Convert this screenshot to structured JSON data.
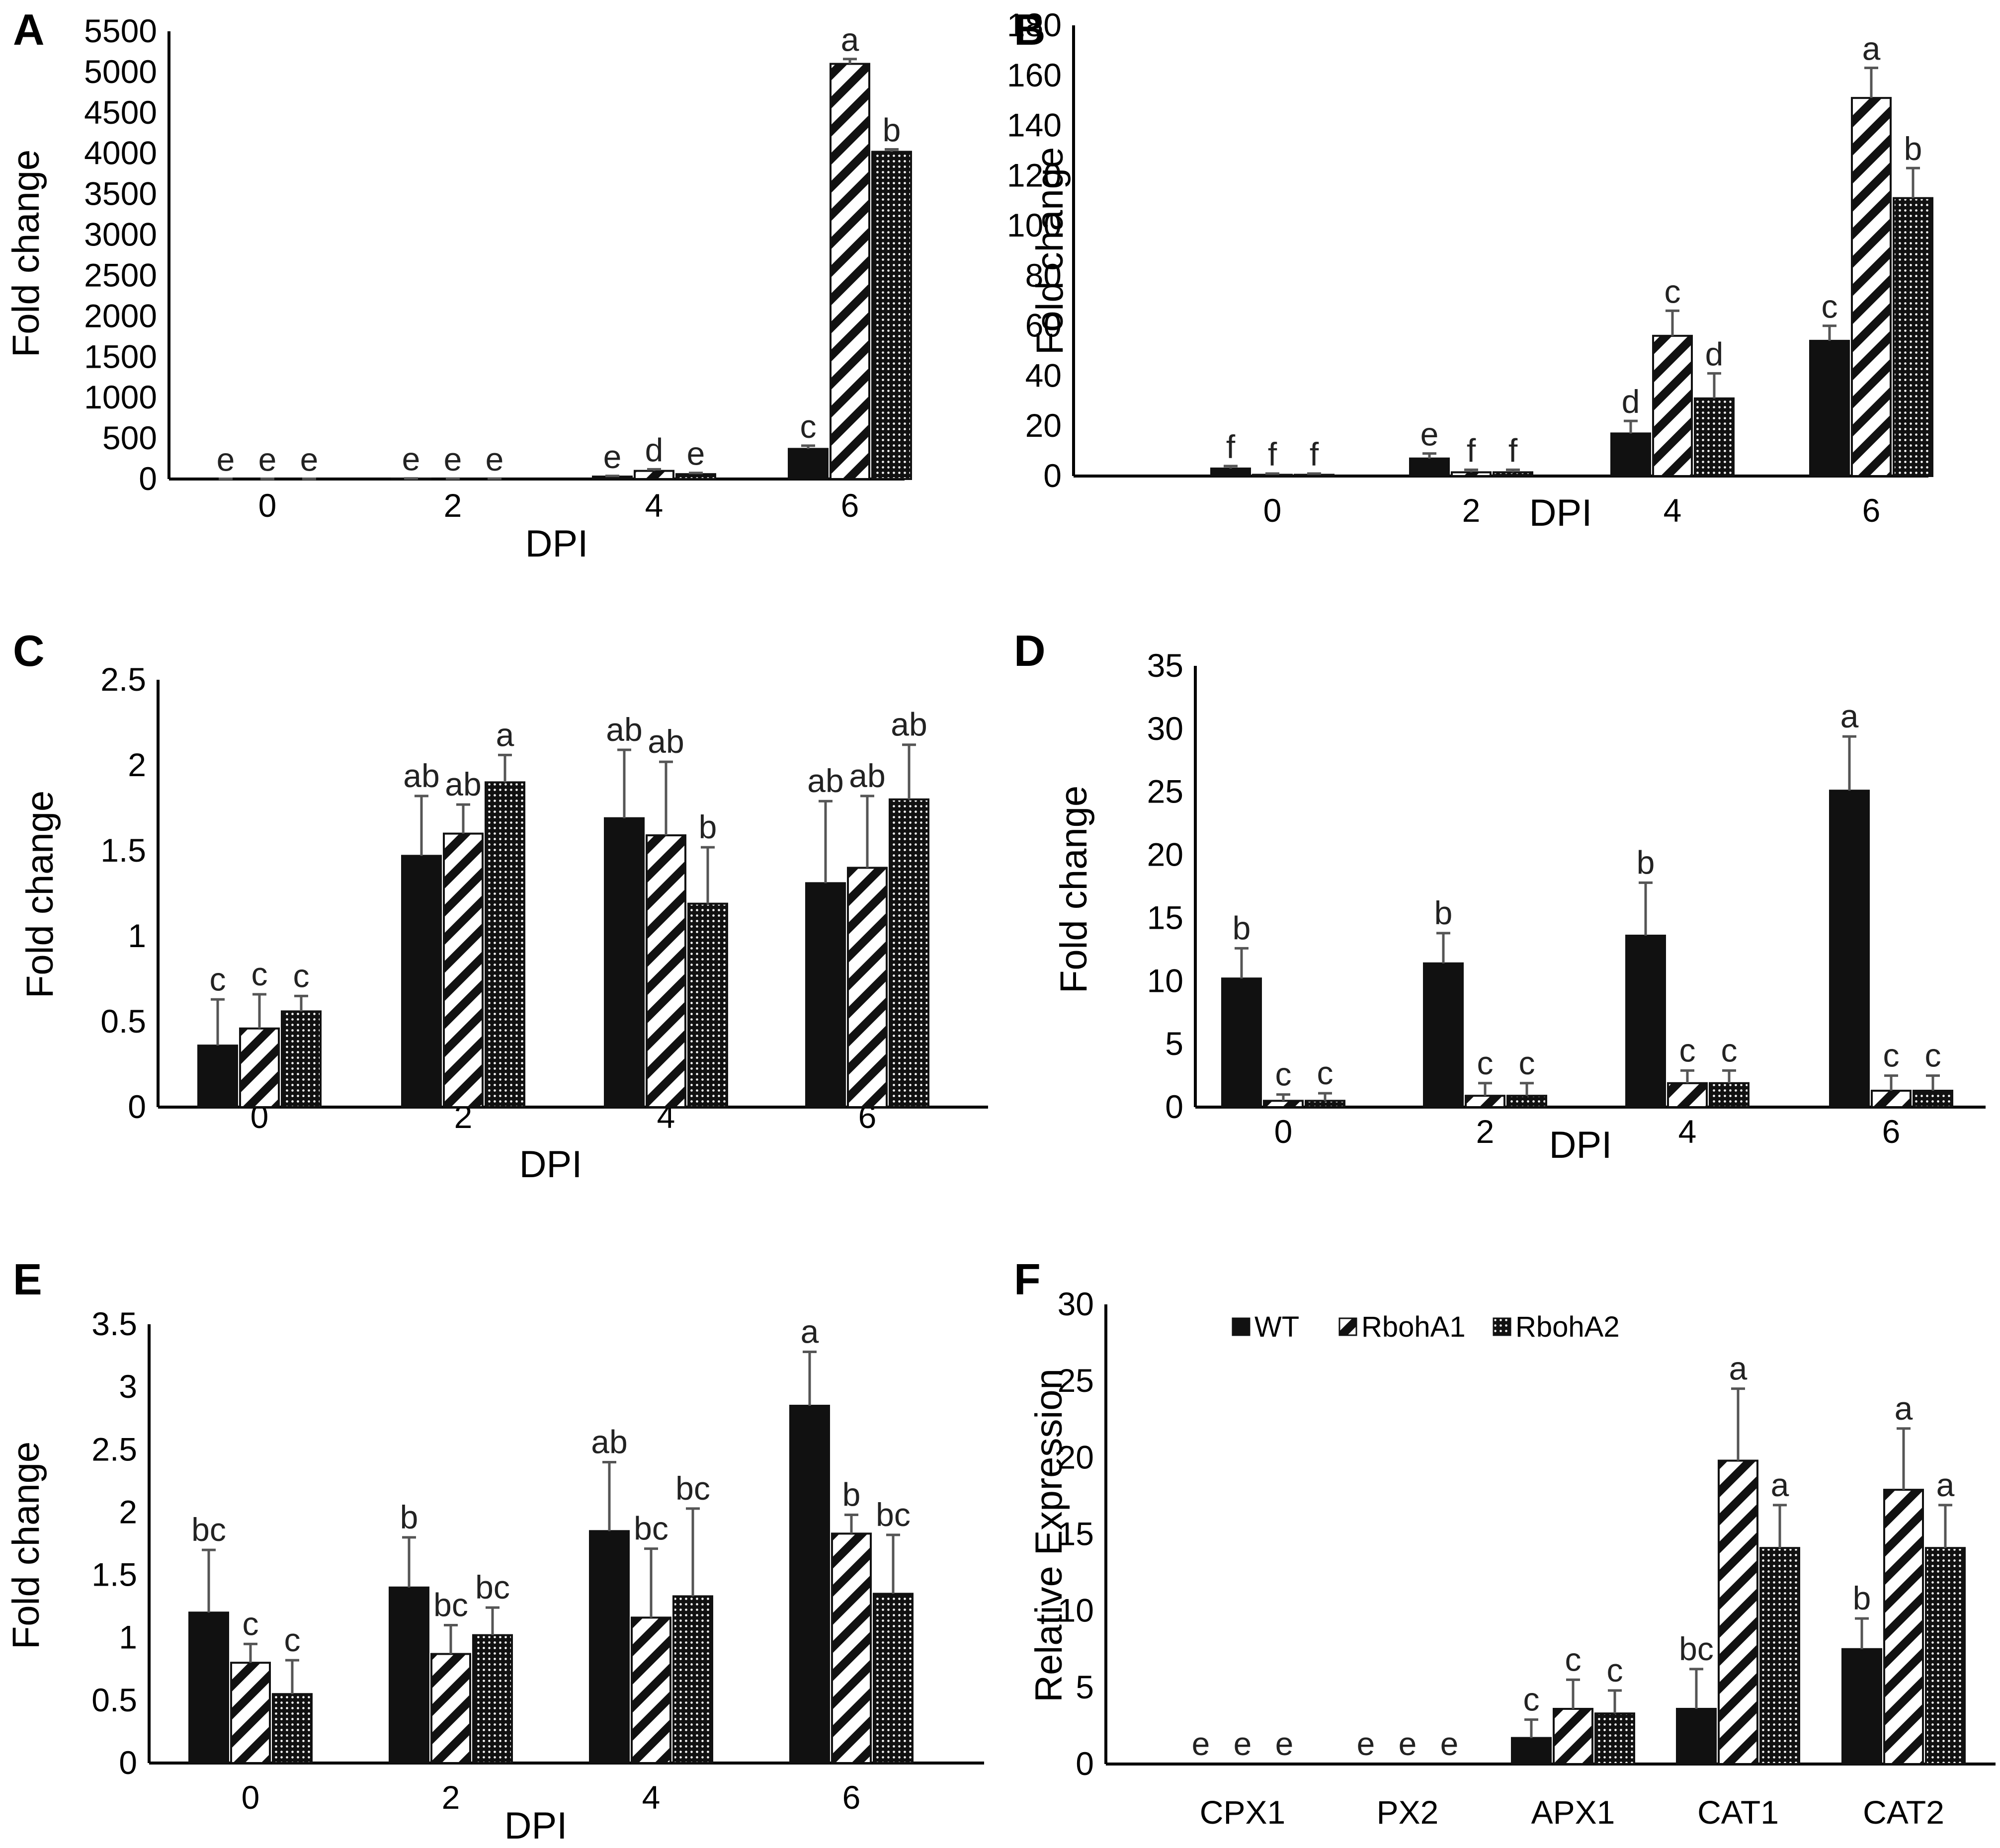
{
  "colors": {
    "bar": "#111111",
    "error": "#555555",
    "axis": "#000000"
  },
  "legend": {
    "items": [
      "WT",
      "RbohA1",
      "RbohA2"
    ],
    "patterns": [
      "solid",
      "diagonal",
      "dots"
    ]
  },
  "chart_data": [
    {
      "panel": "A",
      "type": "bar",
      "xlabel": "DPI",
      "ylabel": "Fold change",
      "ylim": [
        0,
        5500
      ],
      "yticks": [
        0,
        500,
        1000,
        1500,
        2000,
        2500,
        3000,
        3500,
        4000,
        4500,
        5000,
        5500
      ],
      "categories": [
        "0",
        "2",
        "4",
        "6"
      ],
      "series": [
        {
          "name": "WT",
          "values": [
            1,
            5,
            30,
            370
          ],
          "errors": [
            2,
            3,
            8,
            40
          ],
          "labels": [
            "e",
            "e",
            "e",
            "c"
          ]
        },
        {
          "name": "RbohA1",
          "values": [
            1,
            3,
            100,
            5100
          ],
          "errors": [
            1,
            2,
            20,
            60
          ],
          "labels": [
            "e",
            "e",
            "d",
            "a"
          ]
        },
        {
          "name": "RbohA2",
          "values": [
            1,
            3,
            60,
            4020
          ],
          "errors": [
            1,
            2,
            15,
            30
          ],
          "labels": [
            "e",
            "e",
            "e",
            "b"
          ]
        }
      ]
    },
    {
      "panel": "B",
      "type": "bar",
      "xlabel": "DPI",
      "ylabel": "Fold change",
      "ylim": [
        0,
        180
      ],
      "yticks": [
        0,
        20,
        40,
        60,
        80,
        100,
        120,
        140,
        160,
        180
      ],
      "categories": [
        "0",
        "2",
        "4",
        "6"
      ],
      "series": [
        {
          "name": "WT",
          "values": [
            3,
            7,
            17,
            54
          ],
          "errors": [
            1,
            2,
            5,
            6
          ],
          "labels": [
            "f",
            "e",
            "d",
            "c"
          ]
        },
        {
          "name": "RbohA1",
          "values": [
            0.5,
            1.5,
            56,
            151
          ],
          "errors": [
            0.5,
            1,
            10,
            12
          ],
          "labels": [
            "f",
            "f",
            "c",
            "a"
          ]
        },
        {
          "name": "RbohA2",
          "values": [
            0.5,
            1.5,
            31,
            111
          ],
          "errors": [
            0.5,
            1,
            10,
            12
          ],
          "labels": [
            "f",
            "f",
            "d",
            "b"
          ]
        }
      ]
    },
    {
      "panel": "C",
      "type": "bar",
      "xlabel": "DPI",
      "ylabel": "Fold change",
      "ylim": [
        0,
        2.5
      ],
      "yticks": [
        0,
        0.5,
        1,
        1.5,
        2,
        2.5
      ],
      "categories": [
        "0",
        "2",
        "4",
        "6"
      ],
      "series": [
        {
          "name": "WT",
          "values": [
            0.36,
            1.47,
            1.69,
            1.31
          ],
          "errors": [
            0.27,
            0.35,
            0.4,
            0.48
          ],
          "labels": [
            "c",
            "ab",
            "ab",
            "ab"
          ]
        },
        {
          "name": "RbohA1",
          "values": [
            0.46,
            1.6,
            1.59,
            1.4
          ],
          "errors": [
            0.2,
            0.17,
            0.43,
            0.42
          ],
          "labels": [
            "c",
            "ab",
            "ab",
            "ab"
          ]
        },
        {
          "name": "RbohA2",
          "values": [
            0.56,
            1.9,
            1.19,
            1.8
          ],
          "errors": [
            0.09,
            0.16,
            0.33,
            0.32
          ],
          "labels": [
            "c",
            "a",
            "b",
            "ab"
          ]
        }
      ]
    },
    {
      "panel": "D",
      "type": "bar",
      "xlabel": "DPI",
      "ylabel": "Fold change",
      "ylim": [
        0,
        35
      ],
      "yticks": [
        0,
        5,
        10,
        15,
        20,
        25,
        30,
        35
      ],
      "categories": [
        "0",
        "2",
        "4",
        "6"
      ],
      "series": [
        {
          "name": "WT",
          "values": [
            10.2,
            11.4,
            13.6,
            25.1
          ],
          "errors": [
            2.4,
            2.4,
            4.2,
            4.3
          ],
          "labels": [
            "b",
            "b",
            "b",
            "a"
          ]
        },
        {
          "name": "RbohA1",
          "values": [
            0.5,
            0.9,
            1.9,
            1.3
          ],
          "errors": [
            0.5,
            1,
            1,
            1.2
          ],
          "labels": [
            "c",
            "c",
            "c",
            "c"
          ]
        },
        {
          "name": "RbohA2",
          "values": [
            0.5,
            0.9,
            1.9,
            1.3
          ],
          "errors": [
            0.6,
            1,
            1,
            1.2
          ],
          "labels": [
            "c",
            "c",
            "c",
            "c"
          ]
        }
      ]
    },
    {
      "panel": "E",
      "type": "bar",
      "xlabel": "DPI",
      "ylabel": "Fold change",
      "ylim": [
        0,
        3.5
      ],
      "yticks": [
        0,
        0.5,
        1,
        1.5,
        2,
        2.5,
        3,
        3.5
      ],
      "categories": [
        "0",
        "2",
        "4",
        "6"
      ],
      "series": [
        {
          "name": "WT",
          "values": [
            1.2,
            1.4,
            1.85,
            2.85
          ],
          "errors": [
            0.5,
            0.4,
            0.55,
            0.43
          ],
          "labels": [
            "bc",
            "b",
            "ab",
            "a"
          ]
        },
        {
          "name": "RbohA1",
          "values": [
            0.8,
            0.87,
            1.16,
            1.83
          ],
          "errors": [
            0.15,
            0.23,
            0.55,
            0.15
          ],
          "labels": [
            "c",
            "bc",
            "bc",
            "b"
          ]
        },
        {
          "name": "RbohA2",
          "values": [
            0.55,
            1.02,
            1.33,
            1.35
          ],
          "errors": [
            0.27,
            0.22,
            0.7,
            0.47
          ],
          "labels": [
            "c",
            "bc",
            "bc",
            "bc"
          ]
        }
      ]
    },
    {
      "panel": "F",
      "type": "bar",
      "xlabel": "",
      "ylabel": "Relative Expression",
      "ylim": [
        0,
        30
      ],
      "yticks": [
        0,
        5,
        10,
        15,
        20,
        25,
        30
      ],
      "categories": [
        "CPX1",
        "PX2",
        "APX1",
        "CAT1",
        "CAT2"
      ],
      "legend": true,
      "series": [
        {
          "name": "WT",
          "values": [
            0,
            0,
            1.7,
            3.6,
            7.5
          ],
          "errors": [
            0,
            0,
            1.2,
            2.6,
            2.0
          ],
          "labels": [
            "e",
            "e",
            "c",
            "bc",
            "b"
          ]
        },
        {
          "name": "RbohA1",
          "values": [
            0,
            0,
            3.6,
            19.8,
            17.9
          ],
          "errors": [
            0,
            0,
            1.9,
            4.7,
            4.0
          ],
          "labels": [
            "e",
            "e",
            "c",
            "a",
            "a"
          ]
        },
        {
          "name": "RbohA2",
          "values": [
            0,
            0,
            3.3,
            14.1,
            14.1
          ],
          "errors": [
            0,
            0,
            1.5,
            2.8,
            2.8
          ],
          "labels": [
            "e",
            "e",
            "c",
            "a",
            "a"
          ]
        }
      ]
    }
  ]
}
